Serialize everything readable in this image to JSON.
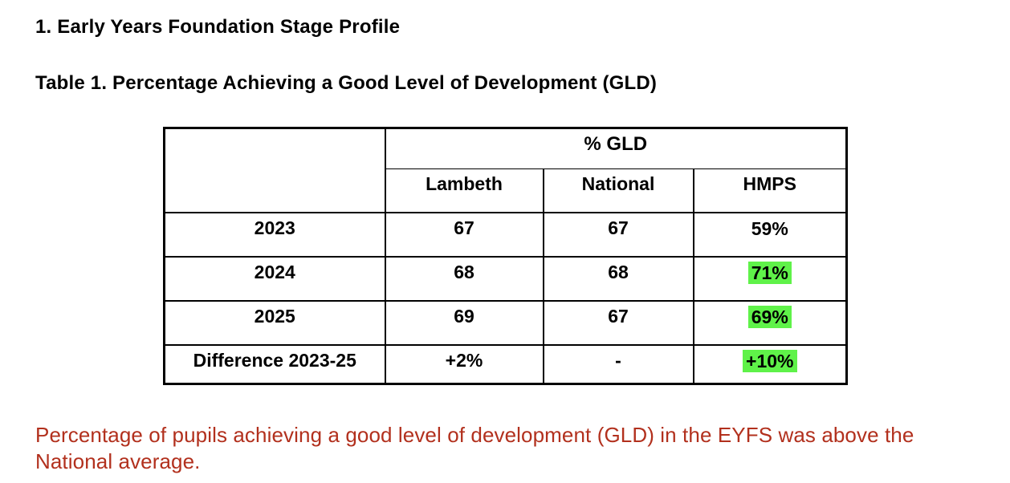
{
  "page": {
    "heading1": "1. Early Years Foundation Stage Profile",
    "heading2": "Table 1. Percentage Achieving a Good Level of Development (GLD)",
    "note": "Percentage of pupils achieving a good level of development (GLD) in the EYFS was above the National average."
  },
  "table": {
    "group_header": "% GLD",
    "columns": [
      "Lambeth",
      "National",
      "HMPS"
    ],
    "rows": [
      {
        "label": "2023",
        "lambeth": "67",
        "national": "67",
        "hmps": "59%",
        "hmps_highlight": false
      },
      {
        "label": "2024",
        "lambeth": "68",
        "national": "68",
        "hmps": "71%",
        "hmps_highlight": true
      },
      {
        "label": "2025",
        "lambeth": "69",
        "national": "67",
        "hmps": "69%",
        "hmps_highlight": true
      },
      {
        "label": "Difference 2023-25",
        "lambeth": "+2%",
        "national": "-",
        "hmps": "+10%",
        "hmps_highlight": true
      }
    ]
  },
  "colors": {
    "highlight_green": "#5FF249",
    "note_red": "#B2301D",
    "border_black": "#000000"
  }
}
